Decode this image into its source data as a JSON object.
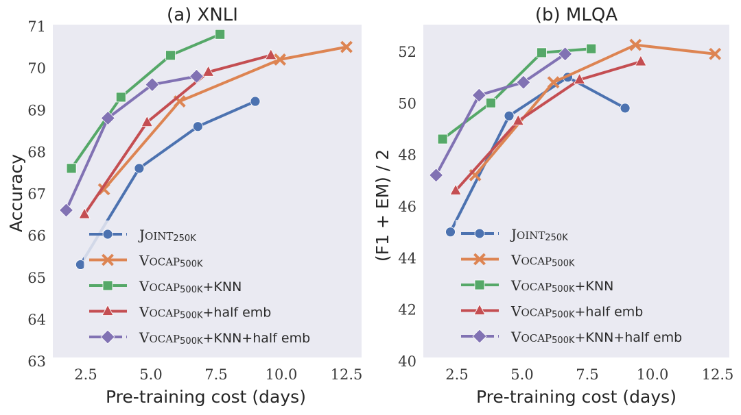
{
  "background_color": "#eaeaf2",
  "series_styles": [
    {
      "name": "Joint250K",
      "color": "#4c72b0",
      "marker": "circle"
    },
    {
      "name": "VoCap500K",
      "color": "#dd8452",
      "marker": "x"
    },
    {
      "name": "VoCap500K+KNN",
      "color": "#55a868",
      "marker": "square"
    },
    {
      "name": "VoCap500K+half emb",
      "color": "#c44e52",
      "marker": "triangle"
    },
    {
      "name": "VoCap500K+KNN+half emb",
      "color": "#8172b3",
      "marker": "diamond"
    }
  ],
  "legend_labels": [
    {
      "main": "Joint",
      "sub": "250K",
      "suffix": ""
    },
    {
      "main": "VoCap",
      "sub": "500K",
      "suffix": ""
    },
    {
      "main": "VoCap",
      "sub": "500K",
      "suffix": "+KNN"
    },
    {
      "main": "VoCap",
      "sub": "500K",
      "suffix": "+half emb"
    },
    {
      "main": "VoCap",
      "sub": "500K",
      "suffix": "+KNN+half emb"
    }
  ],
  "chart_data": [
    {
      "type": "line",
      "title": "(a) XNLI",
      "xlabel": "Pre-training cost (days)",
      "ylabel": "Accuracy",
      "xlim": [
        1.3,
        13.2
      ],
      "ylim": [
        63,
        71
      ],
      "xticks": [
        "2.5",
        "5.0",
        "7.5",
        "10.0",
        "12.5"
      ],
      "xtick_values": [
        2.5,
        5.0,
        7.5,
        10.0,
        12.5
      ],
      "yticks": [
        "63",
        "64",
        "65",
        "66",
        "67",
        "68",
        "69",
        "70",
        "71"
      ],
      "ytick_values": [
        63,
        64,
        65,
        66,
        67,
        68,
        69,
        70,
        71
      ],
      "grid": false,
      "legend_position": "lower-left",
      "series": [
        {
          "name": "Joint250K",
          "x": [
            2.3,
            4.55,
            6.8,
            9.0
          ],
          "y": [
            65.3,
            67.6,
            68.6,
            69.2
          ]
        },
        {
          "name": "VoCap500K",
          "x": [
            3.2,
            6.1,
            9.95,
            12.5
          ],
          "y": [
            67.1,
            69.2,
            70.2,
            70.5
          ]
        },
        {
          "name": "VoCap500K+KNN",
          "x": [
            1.95,
            3.85,
            5.75,
            7.65
          ],
          "y": [
            67.6,
            69.3,
            70.3,
            70.8
          ]
        },
        {
          "name": "VoCap500K+half emb",
          "x": [
            2.45,
            4.85,
            7.2,
            9.6
          ],
          "y": [
            66.5,
            68.7,
            69.9,
            70.3
          ]
        },
        {
          "name": "VoCap500K+KNN+half emb",
          "x": [
            1.75,
            3.35,
            5.05,
            6.75
          ],
          "y": [
            66.6,
            68.8,
            69.6,
            69.8
          ]
        }
      ]
    },
    {
      "type": "line",
      "title": "(b) MLQA",
      "xlabel": "Pre-training cost (days)",
      "ylabel": "(F1 + EM) / 2",
      "xlim": [
        1.3,
        13.2
      ],
      "ylim": [
        40,
        53
      ],
      "xticks": [
        "2.5",
        "5.0",
        "7.5",
        "10.0",
        "12.5"
      ],
      "xtick_values": [
        2.5,
        5.0,
        7.5,
        10.0,
        12.5
      ],
      "yticks": [
        "40",
        "42",
        "44",
        "46",
        "48",
        "50",
        "52"
      ],
      "ytick_values": [
        40,
        42,
        44,
        46,
        48,
        50,
        52
      ],
      "grid": false,
      "legend_position": "lower-left",
      "series": [
        {
          "name": "Joint250K",
          "x": [
            2.25,
            4.5,
            6.75,
            8.95
          ],
          "y": [
            45.0,
            49.5,
            51.0,
            49.8
          ]
        },
        {
          "name": "VoCap500K",
          "x": [
            3.2,
            6.2,
            9.35,
            12.4
          ],
          "y": [
            47.2,
            50.8,
            52.25,
            51.9
          ]
        },
        {
          "name": "VoCap500K+KNN",
          "x": [
            1.95,
            3.8,
            5.75,
            7.65
          ],
          "y": [
            48.6,
            50.0,
            51.95,
            52.1
          ]
        },
        {
          "name": "VoCap500K+half emb",
          "x": [
            2.45,
            4.85,
            7.2,
            9.55
          ],
          "y": [
            46.6,
            49.3,
            50.9,
            51.6
          ]
        },
        {
          "name": "VoCap500K+KNN+half emb",
          "x": [
            1.7,
            3.35,
            5.05,
            6.65
          ],
          "y": [
            47.2,
            50.3,
            50.8,
            51.9
          ]
        }
      ]
    }
  ]
}
